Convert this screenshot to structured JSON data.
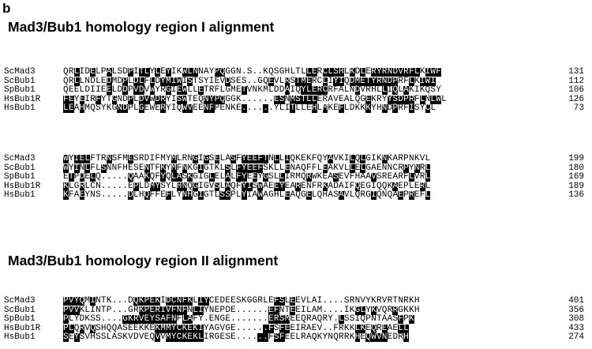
{
  "panel_label": "b",
  "sections": [
    {
      "title": "Mad3/Bub1 homology region I alignment",
      "blocks": [
        {
          "rows": [
            {
              "name": "ScMad3",
              "seq": "QRLIDELPALSDPITLYLEYIKWLNNAYPQGGN.S..KQSGHLTLLERCLSHLKDLERYRNDVRFLKIWF",
              "num": "131",
              "shade": "..b..b..b...b.bb.b.b..bbb...bb...............bb.bbbb.b.b.bbbbbbbbb.bbb"
            },
            {
              "name": "ScBub1",
              "seq": "QRLLNDLEDMDPLDLFLDYMIWISTSYIEVDSES..GQEVLRSTMERCLIYIQDMETYRNDPRFLKIWI",
              "num": "112",
              "shade": "..b.....b..b.bb.b.bbbb.b......b.......b..b.bbb..b.bb.bbbbbbbbb..b.bbb"
            },
            {
              "name": "SpBub1",
              "seq": "QEELDIIEELDDPVDVWYRGIEWLLETRFLGMETVNKMLDDAIQYLERCRFALNDVRHLLIQLAKIKQSY",
              "num": "106",
              "shade": "........b..b.bb.b..b.bb..b.......b.......b..bbbbb.....b....b.b.b......"
            },
            {
              "name": "HsBub1R",
              "seq": "FEYEIRFYTGNDPLDVWDRYISWTEQNYPQGGK......ESNMSTLLERAVEALQGEKRYYSDPRFLNLWL",
              "num": "126",
              "shade": "bb.b..b..b..b.bb.bb..bb...bbbb.........bb.bbbbb.........b...bbbbb.b.bb"
            },
            {
              "name": "HsBub1",
              "seq": "LEAHMQSYKGNDPLGEWERYIQWVEENFPENKE......YLITLLEHLMKEFLDKKKYHNDPRFISYCL",
              "num": "73",
              "shade": "bb.b......bb..b...b...bb..bb.....b...b....b...b.b..b....b..b.b..b..b"
            }
          ]
        },
        {
          "rows": [
            {
              "name": "ScMad3",
              "seq": "WYIELFTRNSFMESRDIFMYMLRNGIGSELASFYEEFTNLLIQKEKFQYAVKILQLGIKNKARPNKVL",
              "num": "199",
              "shade": "b.bbb...b...b.......b...b.b.b..b.bbbbb.b.b.......b...b.b...b........"
            },
            {
              "name": "ScBub1",
              "seq": "WYINLFLSNNFHESENTFKYMFNKGIGTKLSLFYEEFSKLLENAQFFLEAKVLLELGAENNCRPYNRL",
              "num": "180",
              "shade": "b.b.b..b.......b..b.b.b..b....b.bbbbb....b......b....b.b.......b.b.b"
            },
            {
              "name": "SpBub1",
              "seq": "ETPDELQ.....QAAKQFYQLASKGIGLELALFYEEYGSLLIRMQRWKEASEVFHAAVSREARFLVRL",
              "num": "169",
              "shade": ".b.b.b......b..b..b.bb.b...b..b.bb.b.b..b....b....b......b......b..b"
            },
            {
              "name": "HsBub1R",
              "seq": "KLGRLCN.....EPLDMYSYLHNQGIGVSLAQFYISWAEEYEARENFRKADAIFQEGIQQKAEPLERL",
              "num": "189",
              "shade": "b..b.........b..bb...bb.b...b.b..bb.b..bb..b....b.....b......b....b"
            },
            {
              "name": "HsBub1",
              "seq": "KFAEYNS.....DLHQFFEFLYNHGIGTLSSPLYIAWAGHLEAQGELQHASAVLQRGIQNQAEPREFL",
              "num": "136",
              "shade": "b..b........b..b...b..bb.b...bb..b..b....b...b.....b.....b....b.b..b"
            }
          ]
        }
      ]
    },
    {
      "title": "Mad3/Bub1 homology region II alignment",
      "blocks": [
        {
          "rows": [
            {
              "name": "ScMad3",
              "seq": "PVYQMINTK...DQKPEKIDCNFKLIYCEDEESKGGRLEFSLEEVLAI....SRNVYKRVRTNRKH",
              "num": "401",
              "shade": "bbbb.b.......bbbbb.bbbbb.bb............bb.b.......................bb"
            },
            {
              "name": "ScBub1",
              "seq": "PVVKLINTP...GRKPERIVFNFNLIYNEPDE......EFNTEEILAM....IKGLYKVQRRGKKH",
              "num": "356",
              "shade": "bbb...........bbbbbbbbb.bb............bb..b...........bb.b...b.....bb"
            },
            {
              "name": "SpBub1",
              "seq": "PLYDKSS....GKRVEYSAFNFLAFY.ENGE.......ERSMEEQRAQRY.LSSIQPNTAASFPK",
              "num": "308",
              "shade": "b..........bbbbbbbbbb.bb..............bbbb.........b..........b.bb"
            },
            {
              "name": "HsBub1R",
              "seq": "PLQRVQSHQQASEEKKEKMMYCKEKIYAGVGE......FSFEEIRAEV..FRKKLKEQREAELL",
              "num": "433",
              "shade": "bb.b.b...........bbbbbbbbb...........bb.bb............bb.b.b..bb"
            },
            {
              "name": "HsBub1",
              "seq": "SEYSVHSSLASKVDVEQVVMYCKEKLIRGESE......FSFEELRAQKYNQRRKHEQWVNEDRH",
              "num": "274",
              "shade": "b.b..............b.bbbbbbb..........bb.bb.............b.bbbb...bb"
            }
          ]
        }
      ]
    }
  ]
}
